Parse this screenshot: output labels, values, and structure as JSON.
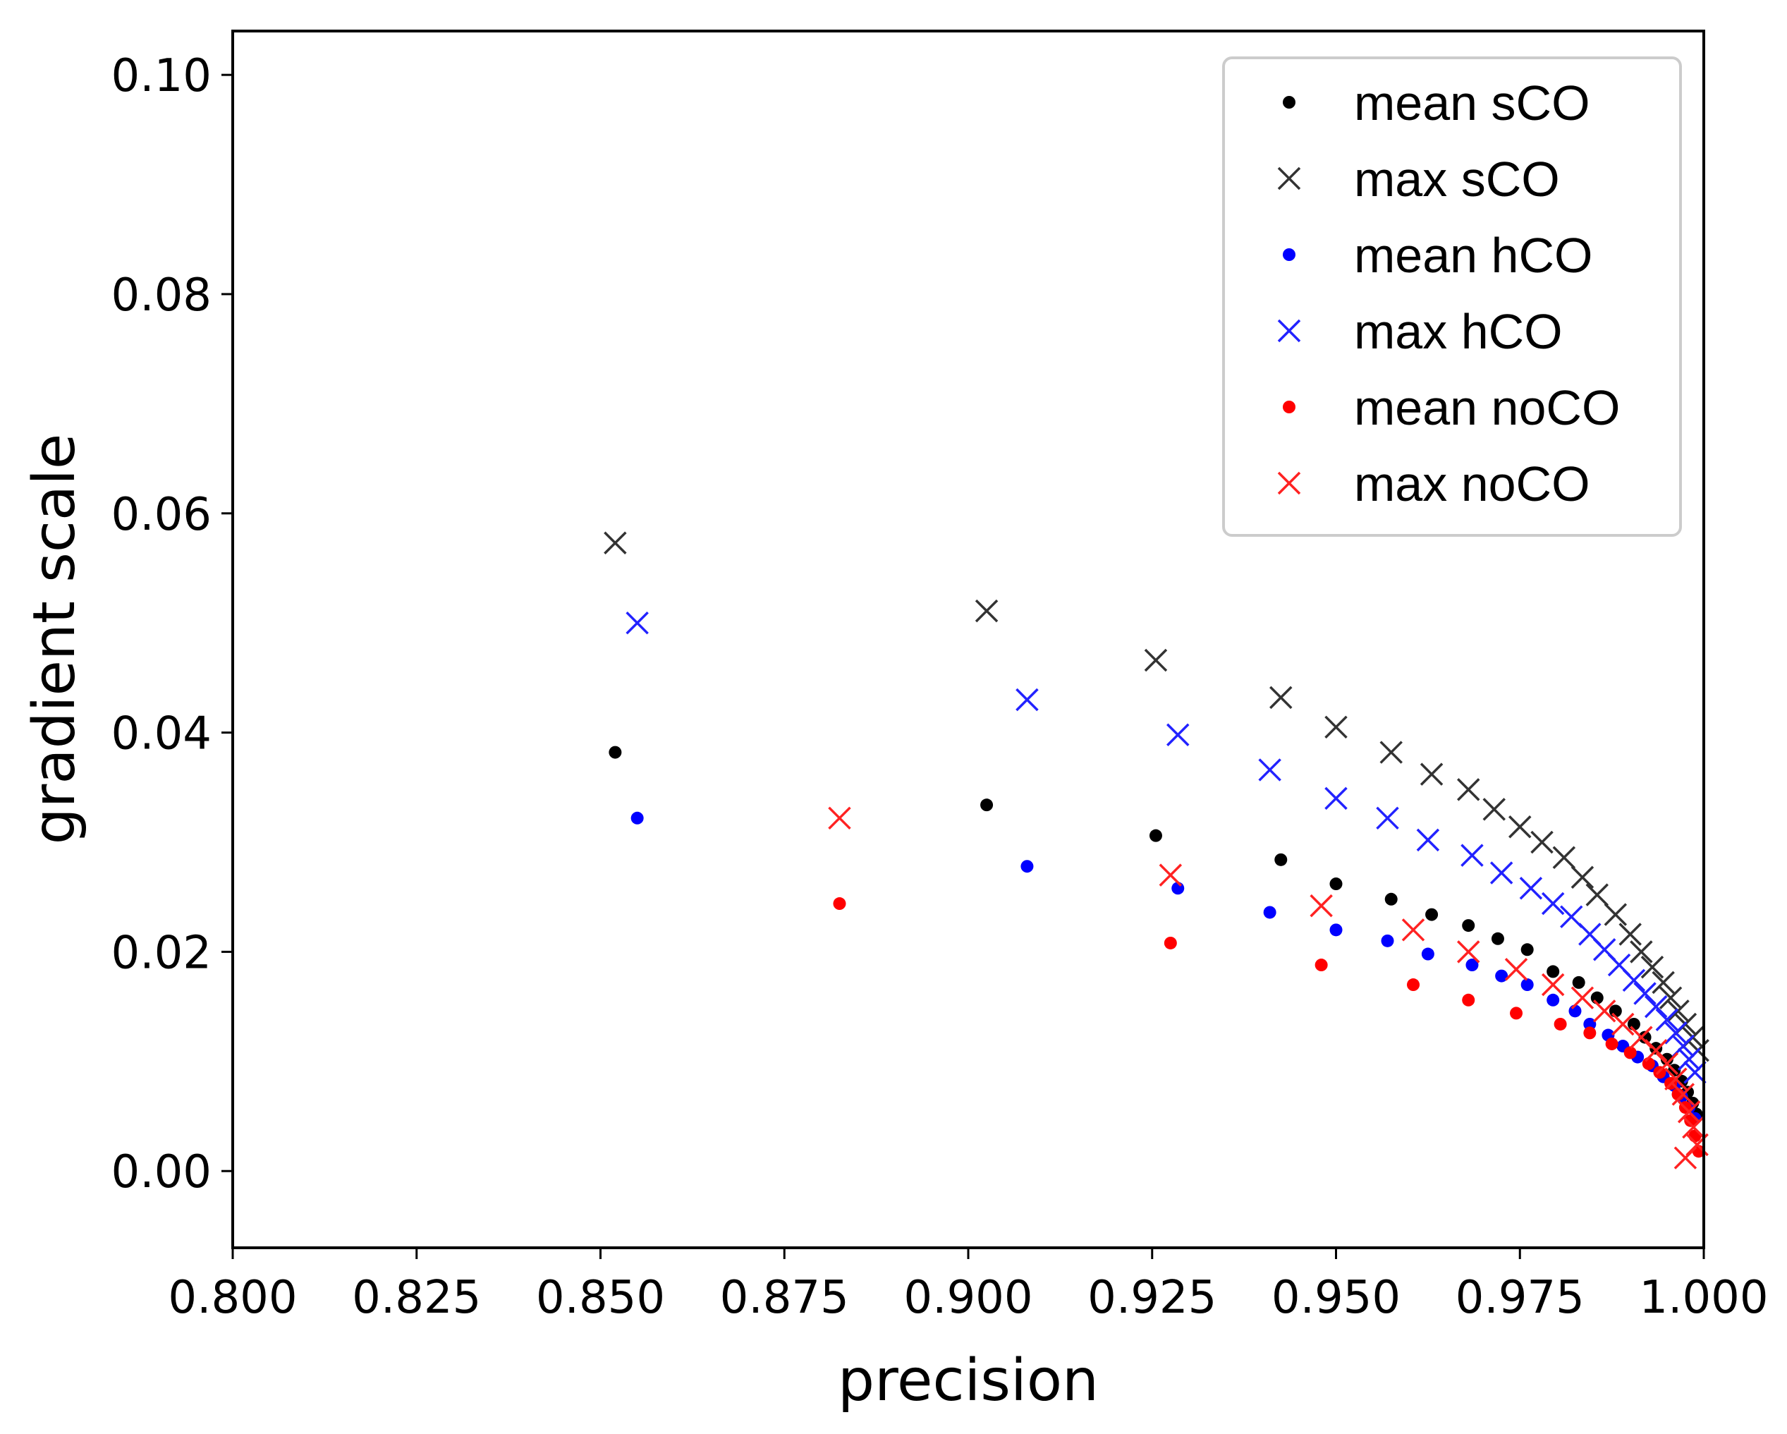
{
  "chart_data": {
    "type": "scatter",
    "title": "",
    "xlabel": "precision",
    "ylabel": "gradient scale",
    "xlim": [
      0.8,
      1.0
    ],
    "ylim": [
      -0.007,
      0.104
    ],
    "xticks": [
      "0.800",
      "0.825",
      "0.850",
      "0.875",
      "0.900",
      "0.925",
      "0.950",
      "0.975",
      "1.000"
    ],
    "yticks": [
      "0.00",
      "0.02",
      "0.04",
      "0.06",
      "0.08",
      "0.10"
    ],
    "grid": false,
    "legend_position": "top-right",
    "series": [
      {
        "name": "mean sCO",
        "marker": "dot",
        "color": "#000000",
        "x": [
          0.852,
          0.9025,
          0.9255,
          0.9425,
          0.95,
          0.9575,
          0.963,
          0.968,
          0.972,
          0.976,
          0.9795,
          0.983,
          0.9855,
          0.988,
          0.9905,
          0.992,
          0.9935,
          0.995,
          0.996,
          0.997,
          0.9978,
          0.9985,
          0.999
        ],
        "y": [
          0.0382,
          0.0334,
          0.0306,
          0.0284,
          0.0262,
          0.0248,
          0.0234,
          0.0224,
          0.0212,
          0.0202,
          0.0182,
          0.0172,
          0.0158,
          0.0146,
          0.0134,
          0.0122,
          0.0112,
          0.0102,
          0.0092,
          0.0082,
          0.0072,
          0.0062,
          0.0052
        ]
      },
      {
        "name": "max sCO",
        "marker": "x",
        "color": "#333333",
        "x": [
          0.852,
          0.9025,
          0.9255,
          0.9425,
          0.95,
          0.9575,
          0.963,
          0.968,
          0.9715,
          0.975,
          0.978,
          0.981,
          0.9835,
          0.9855,
          0.988,
          0.99,
          0.9915,
          0.993,
          0.9945,
          0.9955,
          0.9965,
          0.9975,
          0.9985,
          0.9992
        ],
        "y": [
          0.0573,
          0.0511,
          0.0466,
          0.0432,
          0.0405,
          0.0382,
          0.0362,
          0.0348,
          0.033,
          0.0314,
          0.03,
          0.0286,
          0.0268,
          0.0252,
          0.0234,
          0.0216,
          0.02,
          0.0186,
          0.0172,
          0.0158,
          0.0146,
          0.0134,
          0.0122,
          0.011
        ]
      },
      {
        "name": "mean hCO",
        "marker": "dot",
        "color": "#0000ff",
        "x": [
          0.855,
          0.908,
          0.9285,
          0.941,
          0.95,
          0.957,
          0.9625,
          0.9685,
          0.9725,
          0.976,
          0.9795,
          0.9825,
          0.9845,
          0.987,
          0.989,
          0.991,
          0.993,
          0.9945,
          0.996,
          0.997,
          0.998,
          0.9988
        ],
        "y": [
          0.0322,
          0.0278,
          0.0258,
          0.0236,
          0.022,
          0.021,
          0.0198,
          0.0188,
          0.0178,
          0.017,
          0.0156,
          0.0146,
          0.0134,
          0.0124,
          0.0114,
          0.0104,
          0.0096,
          0.0086,
          0.0078,
          0.0068,
          0.0058,
          0.0048
        ]
      },
      {
        "name": "max hCO",
        "marker": "x",
        "color": "#2222ff",
        "x": [
          0.855,
          0.908,
          0.9285,
          0.941,
          0.95,
          0.957,
          0.9625,
          0.9685,
          0.9725,
          0.9765,
          0.9795,
          0.982,
          0.9845,
          0.9865,
          0.9885,
          0.9905,
          0.992,
          0.9935,
          0.995,
          0.9962,
          0.9972,
          0.998,
          0.9988
        ],
        "y": [
          0.05,
          0.043,
          0.0398,
          0.0366,
          0.034,
          0.0322,
          0.0302,
          0.0288,
          0.0272,
          0.0258,
          0.0244,
          0.0232,
          0.0216,
          0.0202,
          0.0188,
          0.0174,
          0.0162,
          0.015,
          0.0138,
          0.0126,
          0.0114,
          0.0102,
          0.009
        ]
      },
      {
        "name": "mean noCO",
        "marker": "dot",
        "color": "#ff0000",
        "x": [
          0.8825,
          0.9275,
          0.948,
          0.9605,
          0.968,
          0.9745,
          0.9805,
          0.9845,
          0.9875,
          0.99,
          0.9925,
          0.994,
          0.9955,
          0.9965,
          0.9975,
          0.9982,
          0.9988,
          0.9993
        ],
        "y": [
          0.0244,
          0.0208,
          0.0188,
          0.017,
          0.0156,
          0.0144,
          0.0134,
          0.0126,
          0.0116,
          0.0108,
          0.0098,
          0.009,
          0.008,
          0.007,
          0.0058,
          0.0046,
          0.0032,
          0.0018
        ]
      },
      {
        "name": "max noCO",
        "marker": "x",
        "color": "#ff2222",
        "x": [
          0.8825,
          0.9275,
          0.948,
          0.9605,
          0.968,
          0.9745,
          0.9795,
          0.9835,
          0.9865,
          0.989,
          0.9915,
          0.9935,
          0.995,
          0.9962,
          0.9972,
          0.998,
          0.9986,
          0.9991,
          0.9975
        ],
        "y": [
          0.0322,
          0.027,
          0.0242,
          0.022,
          0.02,
          0.0184,
          0.017,
          0.0158,
          0.0146,
          0.0134,
          0.0122,
          0.011,
          0.0098,
          0.0084,
          0.007,
          0.0054,
          0.004,
          0.0024,
          0.0012
        ]
      }
    ]
  }
}
